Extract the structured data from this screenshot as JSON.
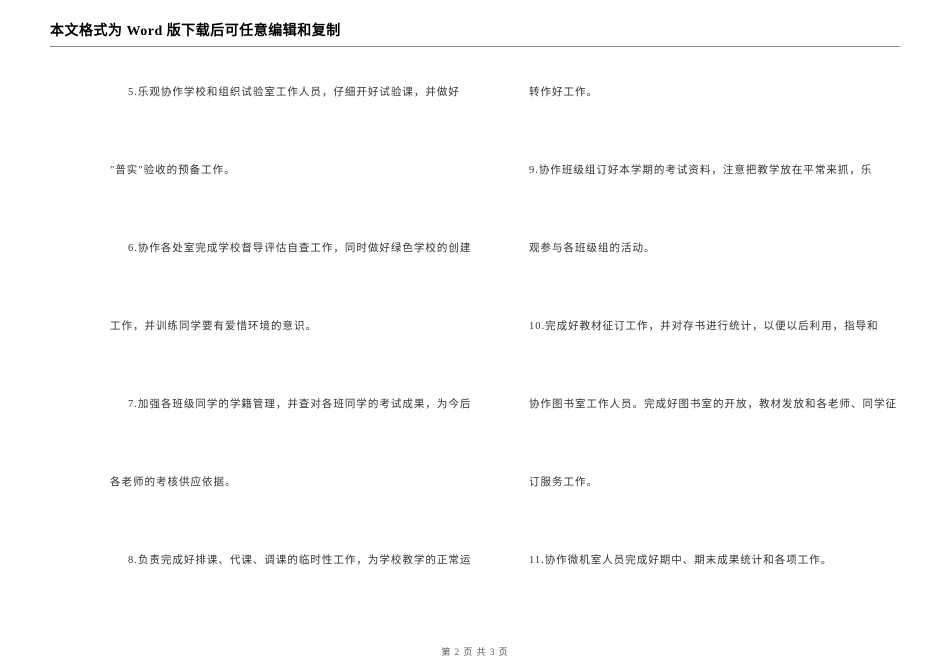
{
  "header": {
    "title": "本文格式为 Word 版下载后可任意编辑和复制"
  },
  "leftColumn": {
    "p1": "5.乐观协作学校和组织试验室工作人员，仔细开好试验课，并做好",
    "p2": "\"普实\"验收的预备工作。",
    "p3": "6.协作各处室完成学校督导评估自查工作，同时做好绿色学校的创建",
    "p4": "工作，并训练同学要有爱惜环境的意识。",
    "p5": "7.加强各班级同学的学籍管理，并查对各班同学的考试成果，为今后",
    "p6": "各老师的考核供应依据。",
    "p7": "8.负责完成好排课、代课、调课的临时性工作，为学校教学的正常运"
  },
  "rightColumn": {
    "p1": "转作好工作。",
    "p2": "9.协作班级组订好本学期的考试资料，注意把教学放在平常来抓，乐",
    "p3": "观参与各班级组的活动。",
    "p4": "10.完成好教材征订工作，并对存书进行统计，以便以后利用，指导和",
    "p5": "协作图书室工作人员。完成好图书室的开放，教材发放和各老师、同学征",
    "p6": "订服务工作。",
    "p7": "11.协作微机室人员完成好期中、期末成果统计和各项工作。"
  },
  "footer": {
    "text": "第 2 页 共 3 页"
  },
  "style": {
    "background": "#ffffff",
    "textColor": "#333333",
    "headerBorderColor": "#888888",
    "bodyFontSize": 10.5,
    "headerFontSize": 14,
    "footerFontSize": 9
  }
}
